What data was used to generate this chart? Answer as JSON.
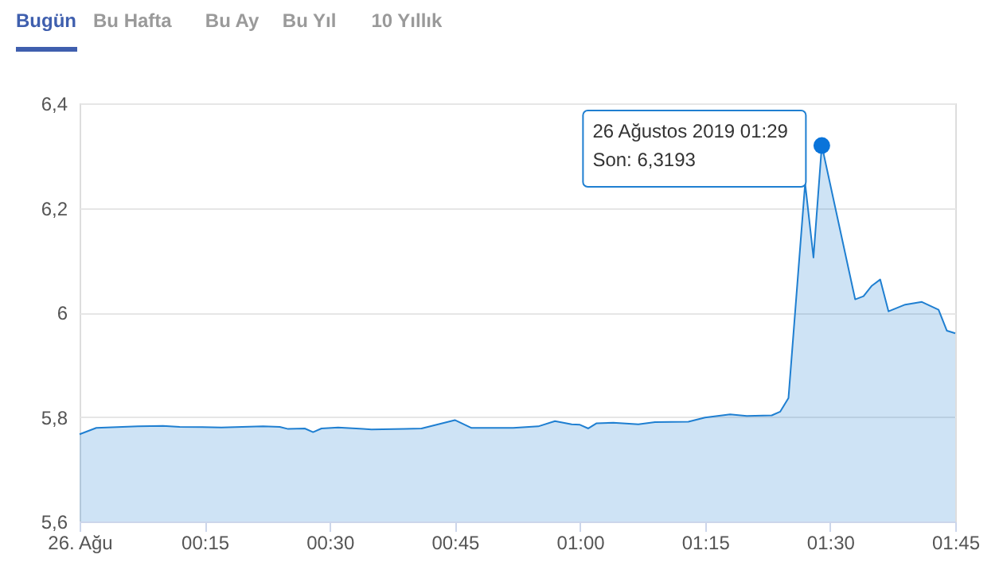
{
  "chart_data": {
    "type": "area",
    "annotations": [
      "Bugün",
      "Bu Hafta",
      "Bu Ay",
      "Bu Yıl",
      "10 Yıllık",
      {
        "text": "26 Ağustos 2019 01:29\nSon: 6,3193",
        "x": "2019-08-26T01:29",
        "y": 6.3193
      }
    ],
    "series": [
      {
        "color": "#1f7fd1",
        "x": [
          "2019-08-26T00:00",
          "2019-08-26T00:02",
          "2019-08-26T00:07",
          "2019-08-26T00:10",
          "2019-08-26T00:12",
          "2019-08-26T00:17",
          "2019-08-26T00:22",
          "2019-08-26T00:24",
          "2019-08-26T00:25",
          "2019-08-26T00:27",
          "2019-08-26T00:28",
          "2019-08-26T00:29",
          "2019-08-26T00:31",
          "2019-08-26T00:34",
          "2019-08-26T00:35",
          "2019-08-26T00:39",
          "2019-08-26T00:41",
          "2019-08-26T00:45",
          "2019-08-26T00:47",
          "2019-08-26T00:52",
          "2019-08-26T00:55",
          "2019-08-26T00:57",
          "2019-08-26T00:59",
          "2019-08-26T01:00",
          "2019-08-26T01:01",
          "2019-08-26T01:02",
          "2019-08-26T01:04",
          "2019-08-26T01:07",
          "2019-08-26T01:09",
          "2019-08-26T01:13",
          "2019-08-26T01:15",
          "2019-08-26T01:18",
          "2019-08-26T01:20",
          "2019-08-26T01:23",
          "2019-08-26T01:24",
          "2019-08-26T01:25",
          "2019-08-26T01:27",
          "2019-08-26T01:28",
          "2019-08-26T01:29",
          "2019-08-26T01:33",
          "2019-08-26T01:34",
          "2019-08-26T01:35",
          "2019-08-26T01:36",
          "2019-08-26T01:37",
          "2019-08-26T01:39",
          "2019-08-26T01:41",
          "2019-08-26T01:43",
          "2019-08-26T01:44",
          "2019-08-26T01:45"
        ],
        "values": [
          5.767,
          5.779,
          5.782,
          5.783,
          5.781,
          5.78,
          5.782,
          5.781,
          5.777,
          5.778,
          5.771,
          5.778,
          5.78,
          5.777,
          5.776,
          5.777,
          5.778,
          5.794,
          5.779,
          5.779,
          5.782,
          5.792,
          5.786,
          5.785,
          5.778,
          5.788,
          5.789,
          5.786,
          5.79,
          5.791,
          5.799,
          5.805,
          5.802,
          5.803,
          5.81,
          5.836,
          6.247,
          6.105,
          6.3193,
          6.025,
          6.031,
          6.051,
          6.063,
          6.002,
          6.015,
          6.02,
          6.005,
          5.965,
          5.96
        ]
      }
    ],
    "xlim": [
      "2019-08-26T00:00",
      "2019-08-26T01:45"
    ],
    "xticks": [
      {
        "value": "2019-08-26T00:00",
        "label": "26. Ağu"
      },
      {
        "value": "2019-08-26T00:15",
        "label": "00:15"
      },
      {
        "value": "2019-08-26T00:30",
        "label": "00:30"
      },
      {
        "value": "2019-08-26T00:45",
        "label": "00:45"
      },
      {
        "value": "2019-08-26T01:00",
        "label": "01:00"
      },
      {
        "value": "2019-08-26T01:15",
        "label": "01:15"
      },
      {
        "value": "2019-08-26T01:30",
        "label": "01:30"
      },
      {
        "value": "2019-08-26T01:45",
        "label": "01:45"
      }
    ],
    "ylim": [
      5.6,
      6.4
    ],
    "yticks": [
      {
        "value": 5.6,
        "label": "5,6"
      },
      {
        "value": 5.8,
        "label": "5,8"
      },
      6,
      {
        "value": 6.2,
        "label": "6,2"
      },
      {
        "value": 6.4,
        "label": "6,4"
      }
    ],
    "grid": "y",
    "marker": "none",
    "line_style": "solid"
  }
}
